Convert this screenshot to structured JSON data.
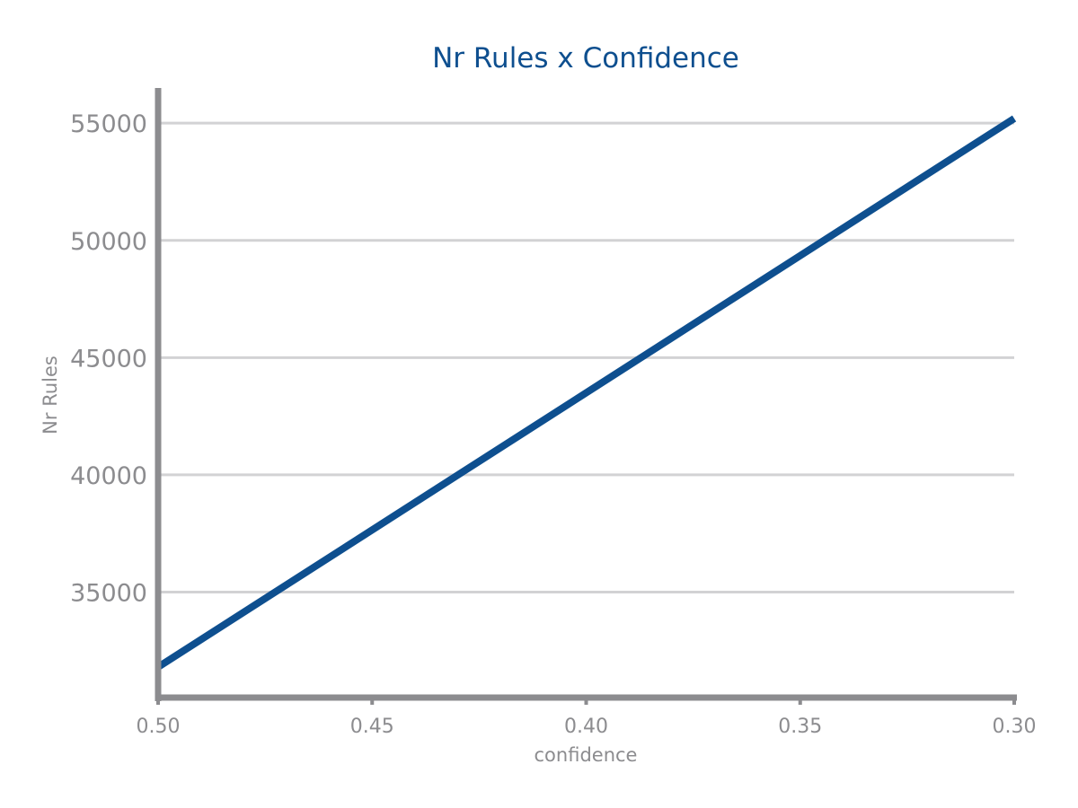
{
  "chart_data": {
    "type": "line",
    "title": "Nr Rules x Confidence",
    "xlabel": "confidence",
    "ylabel": "Nr Rules",
    "x_ticks": [
      0.5,
      0.45,
      0.4,
      0.35,
      0.3
    ],
    "x_tick_labels": [
      "0.50",
      "0.45",
      "0.40",
      "0.35",
      "0.30"
    ],
    "y_ticks": [
      35000,
      40000,
      45000,
      50000,
      55000
    ],
    "y_tick_labels": [
      "35000",
      "40000",
      "45000",
      "50000",
      "55000"
    ],
    "xlim": [
      0.5,
      0.3
    ],
    "ylim": [
      30500,
      56500
    ],
    "x_reversed": true,
    "grid": "horizontal",
    "legend": "none",
    "series": [
      {
        "values": [
          {
            "x": 0.5,
            "y": 31800
          },
          {
            "x": 0.3,
            "y": 55200
          }
        ]
      }
    ]
  },
  "colors": {
    "title": "#0e4f8f",
    "line": "#0e4f8f",
    "axis": "#8c8c8f",
    "grid": "#d2d2d4",
    "tick_text": "#8c8c8f"
  }
}
